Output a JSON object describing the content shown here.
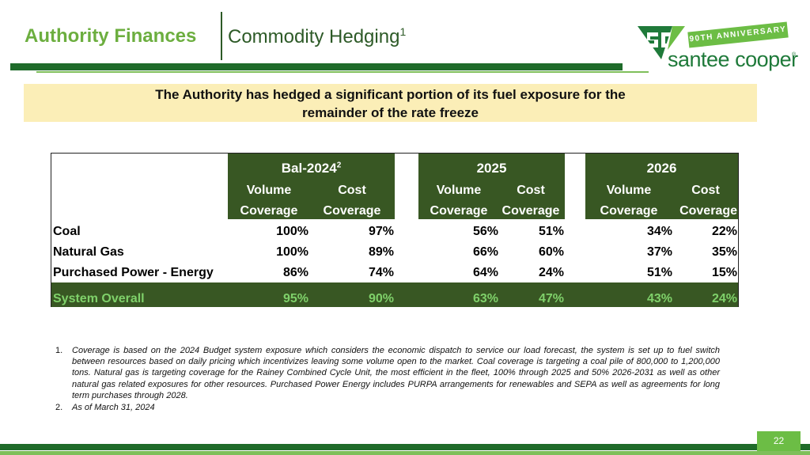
{
  "header": {
    "section": "Authority Finances",
    "topic": "Commodity Hedging",
    "topic_footnote": "1"
  },
  "logo": {
    "ribbon": "90TH ANNIVERSARY",
    "name": "santee cooper",
    "reg": "®",
    "icon": "santee-cooper-sc-logo-icon",
    "brand_green": "#1f7a3a"
  },
  "callout": {
    "line1": "The Authority has hedged a significant portion of its fuel exposure for the",
    "line2": "remainder of the rate freeze"
  },
  "table": {
    "periods": [
      {
        "label": "Bal-2024",
        "footnote": "2"
      },
      {
        "label": "2025",
        "footnote": ""
      },
      {
        "label": "2026",
        "footnote": ""
      }
    ],
    "col_top": [
      "Volume",
      "Cost"
    ],
    "col_bottom": [
      "Coverage",
      "Coverage"
    ],
    "rows": [
      {
        "label": "Coal",
        "values": [
          "100%",
          "97%",
          "56%",
          "51%",
          "34%",
          "22%"
        ]
      },
      {
        "label": "Natural Gas",
        "values": [
          "100%",
          "89%",
          "66%",
          "60%",
          "37%",
          "35%"
        ]
      },
      {
        "label": "Purchased Power - Energy",
        "values": [
          "86%",
          "74%",
          "64%",
          "24%",
          "51%",
          "15%"
        ]
      }
    ],
    "overall": {
      "label": "System Overall",
      "values": [
        "95%",
        "90%",
        "63%",
        "47%",
        "43%",
        "24%"
      ]
    },
    "header_color": "#385723",
    "overall_text_color": "#7fd16a"
  },
  "footnotes": [
    {
      "num": "1.",
      "text": "Coverage is based on the 2024 Budget system exposure which considers the economic dispatch to service our load forecast, the system is set up to fuel switch between resources based on daily pricing which incentivizes leaving some volume open to the market. Coal coverage is targeting a coal pile of 800,000 to 1,200,000 tons. Natural gas is targeting coverage for the Rainey Combined Cycle Unit, the most efficient in the fleet, 100% through 2025 and 50% 2026-2031 as well as other natural gas related exposures for other resources. Purchased Power Energy includes PURPA arrangements for renewables and SEPA as well as agreements for long term purchases through 2028."
    },
    {
      "num": "2.",
      "text": " As of March 31, 2024"
    }
  ],
  "page_number": "22"
}
